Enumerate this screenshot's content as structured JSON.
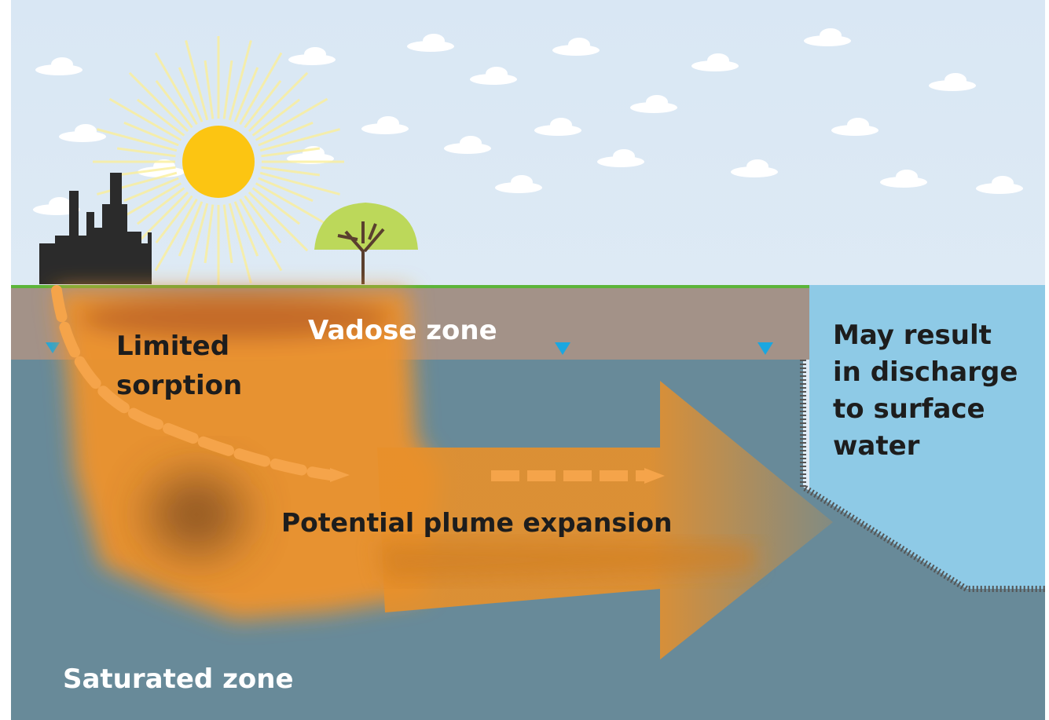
{
  "labels": {
    "vadose_zone": "Vadose zone",
    "limited_sorption": [
      "Limited",
      "sorption"
    ],
    "plume": "Potential plume expansion",
    "discharge": [
      "May result",
      "in discharge",
      "to surface",
      "water"
    ],
    "saturated_zone": "Saturated zone"
  }
}
